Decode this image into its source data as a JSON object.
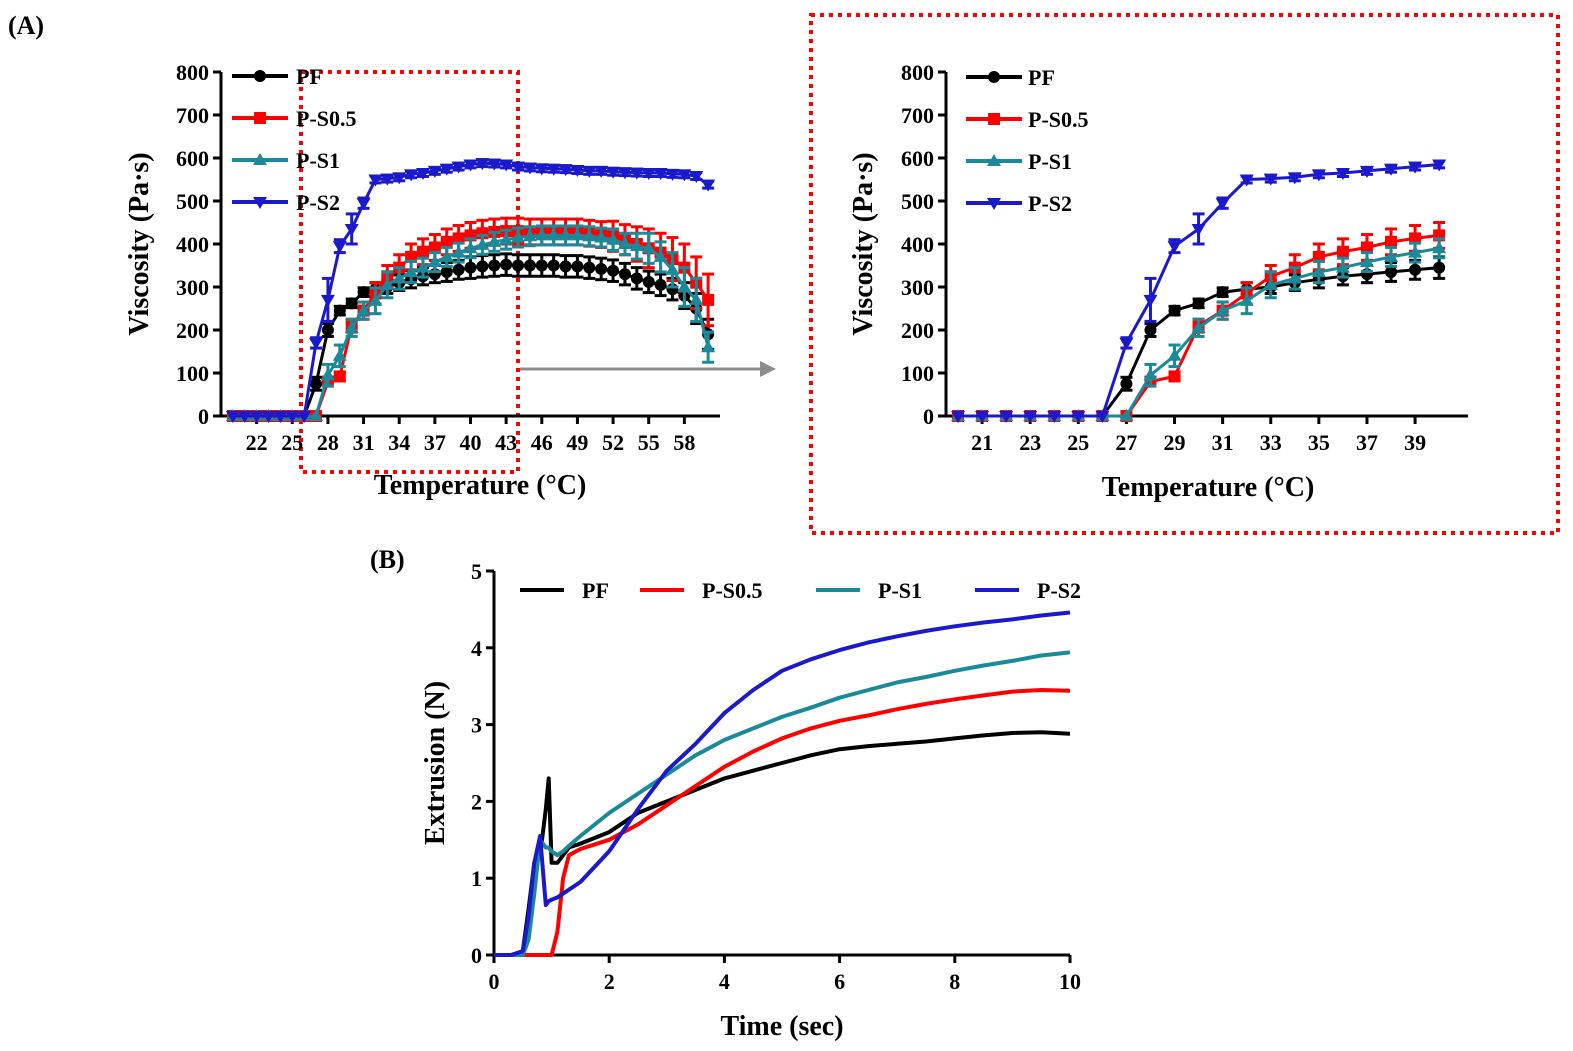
{
  "panel_labels": {
    "a": "(A)",
    "b": "(B)"
  },
  "colors": {
    "PF": "#000000",
    "P-S0.5": "#ff0000",
    "P-S1": "#1a8a9a",
    "P-S2": "#1a1acc",
    "zoom_box": "#ff0000",
    "arrow": "#8c8c8c"
  },
  "chart_data": [
    {
      "id": "A-full",
      "type": "line",
      "xlabel": "Temperature (°C)",
      "ylabel": "Viscosity (Pa·s)",
      "xlim": [
        19,
        61
      ],
      "ylim": [
        0,
        800
      ],
      "xticks": [
        "22",
        "25",
        "28",
        "31",
        "34",
        "37",
        "40",
        "43",
        "46",
        "49",
        "52",
        "55",
        "58"
      ],
      "yticks": [
        "0",
        "100",
        "200",
        "300",
        "400",
        "500",
        "600",
        "700",
        "800"
      ],
      "legend_position": "top-left",
      "markers": {
        "PF": "circle",
        "P-S0.5": "square",
        "P-S1": "triangle-up",
        "P-S2": "triangle-down"
      },
      "x": [
        20,
        21,
        22,
        23,
        24,
        25,
        26,
        27,
        28,
        29,
        30,
        31,
        32,
        33,
        34,
        35,
        36,
        37,
        38,
        39,
        40,
        41,
        42,
        43,
        44,
        45,
        46,
        47,
        48,
        49,
        50,
        51,
        52,
        53,
        54,
        55,
        56,
        57,
        58,
        59,
        60
      ],
      "series": [
        {
          "name": "PF",
          "values": [
            0,
            0,
            0,
            0,
            0,
            0,
            0,
            75,
            200,
            245,
            262,
            288,
            295,
            300,
            310,
            318,
            325,
            330,
            335,
            340,
            345,
            348,
            350,
            352,
            350,
            350,
            350,
            350,
            348,
            348,
            345,
            342,
            338,
            330,
            320,
            312,
            305,
            295,
            280,
            250,
            190
          ],
          "error": [
            0,
            0,
            0,
            0,
            0,
            0,
            0,
            15,
            15,
            10,
            10,
            10,
            15,
            15,
            18,
            20,
            20,
            20,
            22,
            22,
            25,
            25,
            25,
            25,
            25,
            25,
            25,
            25,
            25,
            25,
            25,
            25,
            25,
            25,
            25,
            25,
            25,
            25,
            30,
            35,
            35
          ]
        },
        {
          "name": "P-S0.5",
          "values": [
            0,
            0,
            0,
            0,
            0,
            0,
            0,
            0,
            80,
            92,
            210,
            245,
            285,
            325,
            345,
            370,
            382,
            392,
            405,
            413,
            420,
            425,
            428,
            430,
            430,
            428,
            428,
            428,
            428,
            428,
            425,
            422,
            418,
            410,
            400,
            390,
            380,
            365,
            345,
            310,
            270
          ],
          "error": [
            0,
            0,
            0,
            0,
            0,
            0,
            0,
            0,
            10,
            10,
            15,
            20,
            25,
            25,
            30,
            30,
            30,
            30,
            30,
            30,
            30,
            30,
            30,
            30,
            30,
            30,
            30,
            30,
            30,
            30,
            30,
            30,
            35,
            35,
            40,
            45,
            45,
            50,
            55,
            60,
            60
          ]
        },
        {
          "name": "P-S1",
          "values": [
            0,
            0,
            0,
            0,
            0,
            0,
            0,
            0,
            95,
            140,
            205,
            245,
            268,
            305,
            320,
            335,
            345,
            358,
            370,
            380,
            390,
            398,
            405,
            410,
            415,
            418,
            420,
            420,
            420,
            420,
            418,
            415,
            410,
            400,
            395,
            390,
            370,
            340,
            300,
            270,
            160
          ],
          "error": [
            0,
            0,
            0,
            0,
            0,
            0,
            0,
            0,
            25,
            25,
            20,
            20,
            30,
            30,
            25,
            25,
            22,
            22,
            22,
            22,
            22,
            22,
            22,
            22,
            22,
            22,
            22,
            22,
            22,
            22,
            22,
            22,
            25,
            25,
            30,
            35,
            35,
            40,
            45,
            50,
            35
          ]
        },
        {
          "name": "P-S2",
          "values": [
            0,
            0,
            0,
            0,
            0,
            0,
            0,
            170,
            270,
            395,
            435,
            495,
            550,
            552,
            555,
            562,
            565,
            570,
            575,
            580,
            585,
            588,
            587,
            585,
            580,
            578,
            576,
            575,
            574,
            572,
            570,
            570,
            568,
            567,
            566,
            565,
            565,
            563,
            562,
            558,
            538
          ],
          "error": [
            0,
            0,
            0,
            0,
            0,
            0,
            0,
            12,
            50,
            15,
            35,
            12,
            8,
            8,
            8,
            8,
            8,
            8,
            8,
            8,
            8,
            8,
            8,
            8,
            8,
            8,
            8,
            8,
            8,
            8,
            8,
            8,
            8,
            8,
            8,
            8,
            8,
            8,
            8,
            8,
            8
          ]
        }
      ]
    },
    {
      "id": "A-zoom",
      "type": "line",
      "xlabel": "Temperature (°C)",
      "ylabel": "Viscosity (Pa·s)",
      "xlim": [
        19.5,
        41.2
      ],
      "ylim": [
        0,
        800
      ],
      "xticks": [
        "21",
        "23",
        "25",
        "27",
        "29",
        "31",
        "33",
        "35",
        "37",
        "39"
      ],
      "yticks": [
        "0",
        "100",
        "200",
        "300",
        "400",
        "500",
        "600",
        "700",
        "800"
      ],
      "legend_position": "top-left",
      "markers": {
        "PF": "circle",
        "P-S0.5": "square",
        "P-S1": "triangle-up",
        "P-S2": "triangle-down"
      },
      "x": [
        20,
        21,
        22,
        23,
        24,
        25,
        26,
        27,
        28,
        29,
        30,
        31,
        32,
        33,
        34,
        35,
        36,
        37,
        38,
        39,
        40
      ],
      "series": [
        {
          "name": "PF",
          "values": [
            0,
            0,
            0,
            0,
            0,
            0,
            0,
            75,
            200,
            245,
            262,
            288,
            295,
            300,
            310,
            318,
            325,
            330,
            335,
            340,
            345
          ],
          "error": [
            0,
            0,
            0,
            0,
            0,
            0,
            0,
            15,
            15,
            10,
            10,
            10,
            15,
            15,
            18,
            20,
            20,
            20,
            22,
            22,
            25
          ]
        },
        {
          "name": "P-S0.5",
          "values": [
            0,
            0,
            0,
            0,
            0,
            0,
            0,
            0,
            80,
            92,
            210,
            245,
            285,
            325,
            345,
            370,
            382,
            392,
            405,
            413,
            420
          ],
          "error": [
            0,
            0,
            0,
            0,
            0,
            0,
            0,
            0,
            10,
            10,
            15,
            20,
            25,
            25,
            30,
            30,
            30,
            30,
            30,
            30,
            30
          ]
        },
        {
          "name": "P-S1",
          "values": [
            0,
            0,
            0,
            0,
            0,
            0,
            0,
            0,
            95,
            140,
            205,
            245,
            268,
            305,
            320,
            335,
            345,
            358,
            370,
            380,
            390
          ],
          "error": [
            0,
            0,
            0,
            0,
            0,
            0,
            0,
            0,
            25,
            25,
            20,
            20,
            30,
            30,
            25,
            25,
            22,
            22,
            22,
            22,
            22
          ]
        },
        {
          "name": "P-S2",
          "values": [
            0,
            0,
            0,
            0,
            0,
            0,
            0,
            170,
            270,
            395,
            435,
            495,
            550,
            552,
            555,
            562,
            565,
            570,
            575,
            580,
            585
          ],
          "error": [
            0,
            0,
            0,
            0,
            0,
            0,
            0,
            12,
            50,
            15,
            35,
            12,
            8,
            8,
            8,
            8,
            8,
            8,
            8,
            8,
            8
          ]
        }
      ]
    },
    {
      "id": "B",
      "type": "line",
      "xlabel": "Time (sec)",
      "ylabel": "Extrusion (N)",
      "xlim": [
        0,
        10
      ],
      "ylim": [
        0,
        5
      ],
      "xticks": [
        "0",
        "2",
        "4",
        "6",
        "8",
        "10"
      ],
      "yticks": [
        "0",
        "1",
        "2",
        "3",
        "4",
        "5"
      ],
      "legend_position": "top",
      "x": [
        0,
        0.3,
        0.5,
        0.6,
        0.7,
        0.8,
        0.9,
        0.95,
        1.0,
        1.1,
        1.2,
        1.3,
        1.5,
        2,
        2.5,
        3,
        3.5,
        4,
        4.5,
        5,
        5.5,
        6,
        6.5,
        7,
        7.5,
        8,
        8.5,
        9,
        9.5,
        10
      ],
      "series": [
        {
          "name": "PF",
          "values": [
            0,
            0,
            0.05,
            0.6,
            1.2,
            1.3,
            1.9,
            2.3,
            1.2,
            1.2,
            1.3,
            1.4,
            1.45,
            1.6,
            1.85,
            2.0,
            2.15,
            2.3,
            2.4,
            2.5,
            2.6,
            2.68,
            2.72,
            2.75,
            2.78,
            2.82,
            2.86,
            2.89,
            2.9,
            2.88
          ]
        },
        {
          "name": "P-S0.5",
          "values": [
            0,
            0,
            0,
            0,
            0,
            0,
            0,
            0,
            0,
            0.3,
            1.0,
            1.3,
            1.38,
            1.5,
            1.7,
            1.95,
            2.2,
            2.45,
            2.65,
            2.82,
            2.95,
            3.05,
            3.12,
            3.2,
            3.27,
            3.33,
            3.38,
            3.43,
            3.45,
            3.44
          ]
        },
        {
          "name": "P-S1",
          "values": [
            0,
            0,
            0,
            0.2,
            0.8,
            1.5,
            1.4,
            1.4,
            1.35,
            1.3,
            1.35,
            1.42,
            1.55,
            1.85,
            2.1,
            2.35,
            2.6,
            2.8,
            2.95,
            3.1,
            3.22,
            3.35,
            3.45,
            3.55,
            3.62,
            3.7,
            3.77,
            3.83,
            3.9,
            3.94
          ]
        },
        {
          "name": "P-S2",
          "values": [
            0,
            0,
            0.05,
            0.5,
            1.2,
            1.55,
            0.65,
            0.7,
            0.72,
            0.75,
            0.8,
            0.85,
            0.95,
            1.35,
            1.9,
            2.4,
            2.75,
            3.15,
            3.45,
            3.7,
            3.85,
            3.97,
            4.07,
            4.15,
            4.22,
            4.28,
            4.33,
            4.37,
            4.42,
            4.46
          ]
        }
      ]
    }
  ]
}
